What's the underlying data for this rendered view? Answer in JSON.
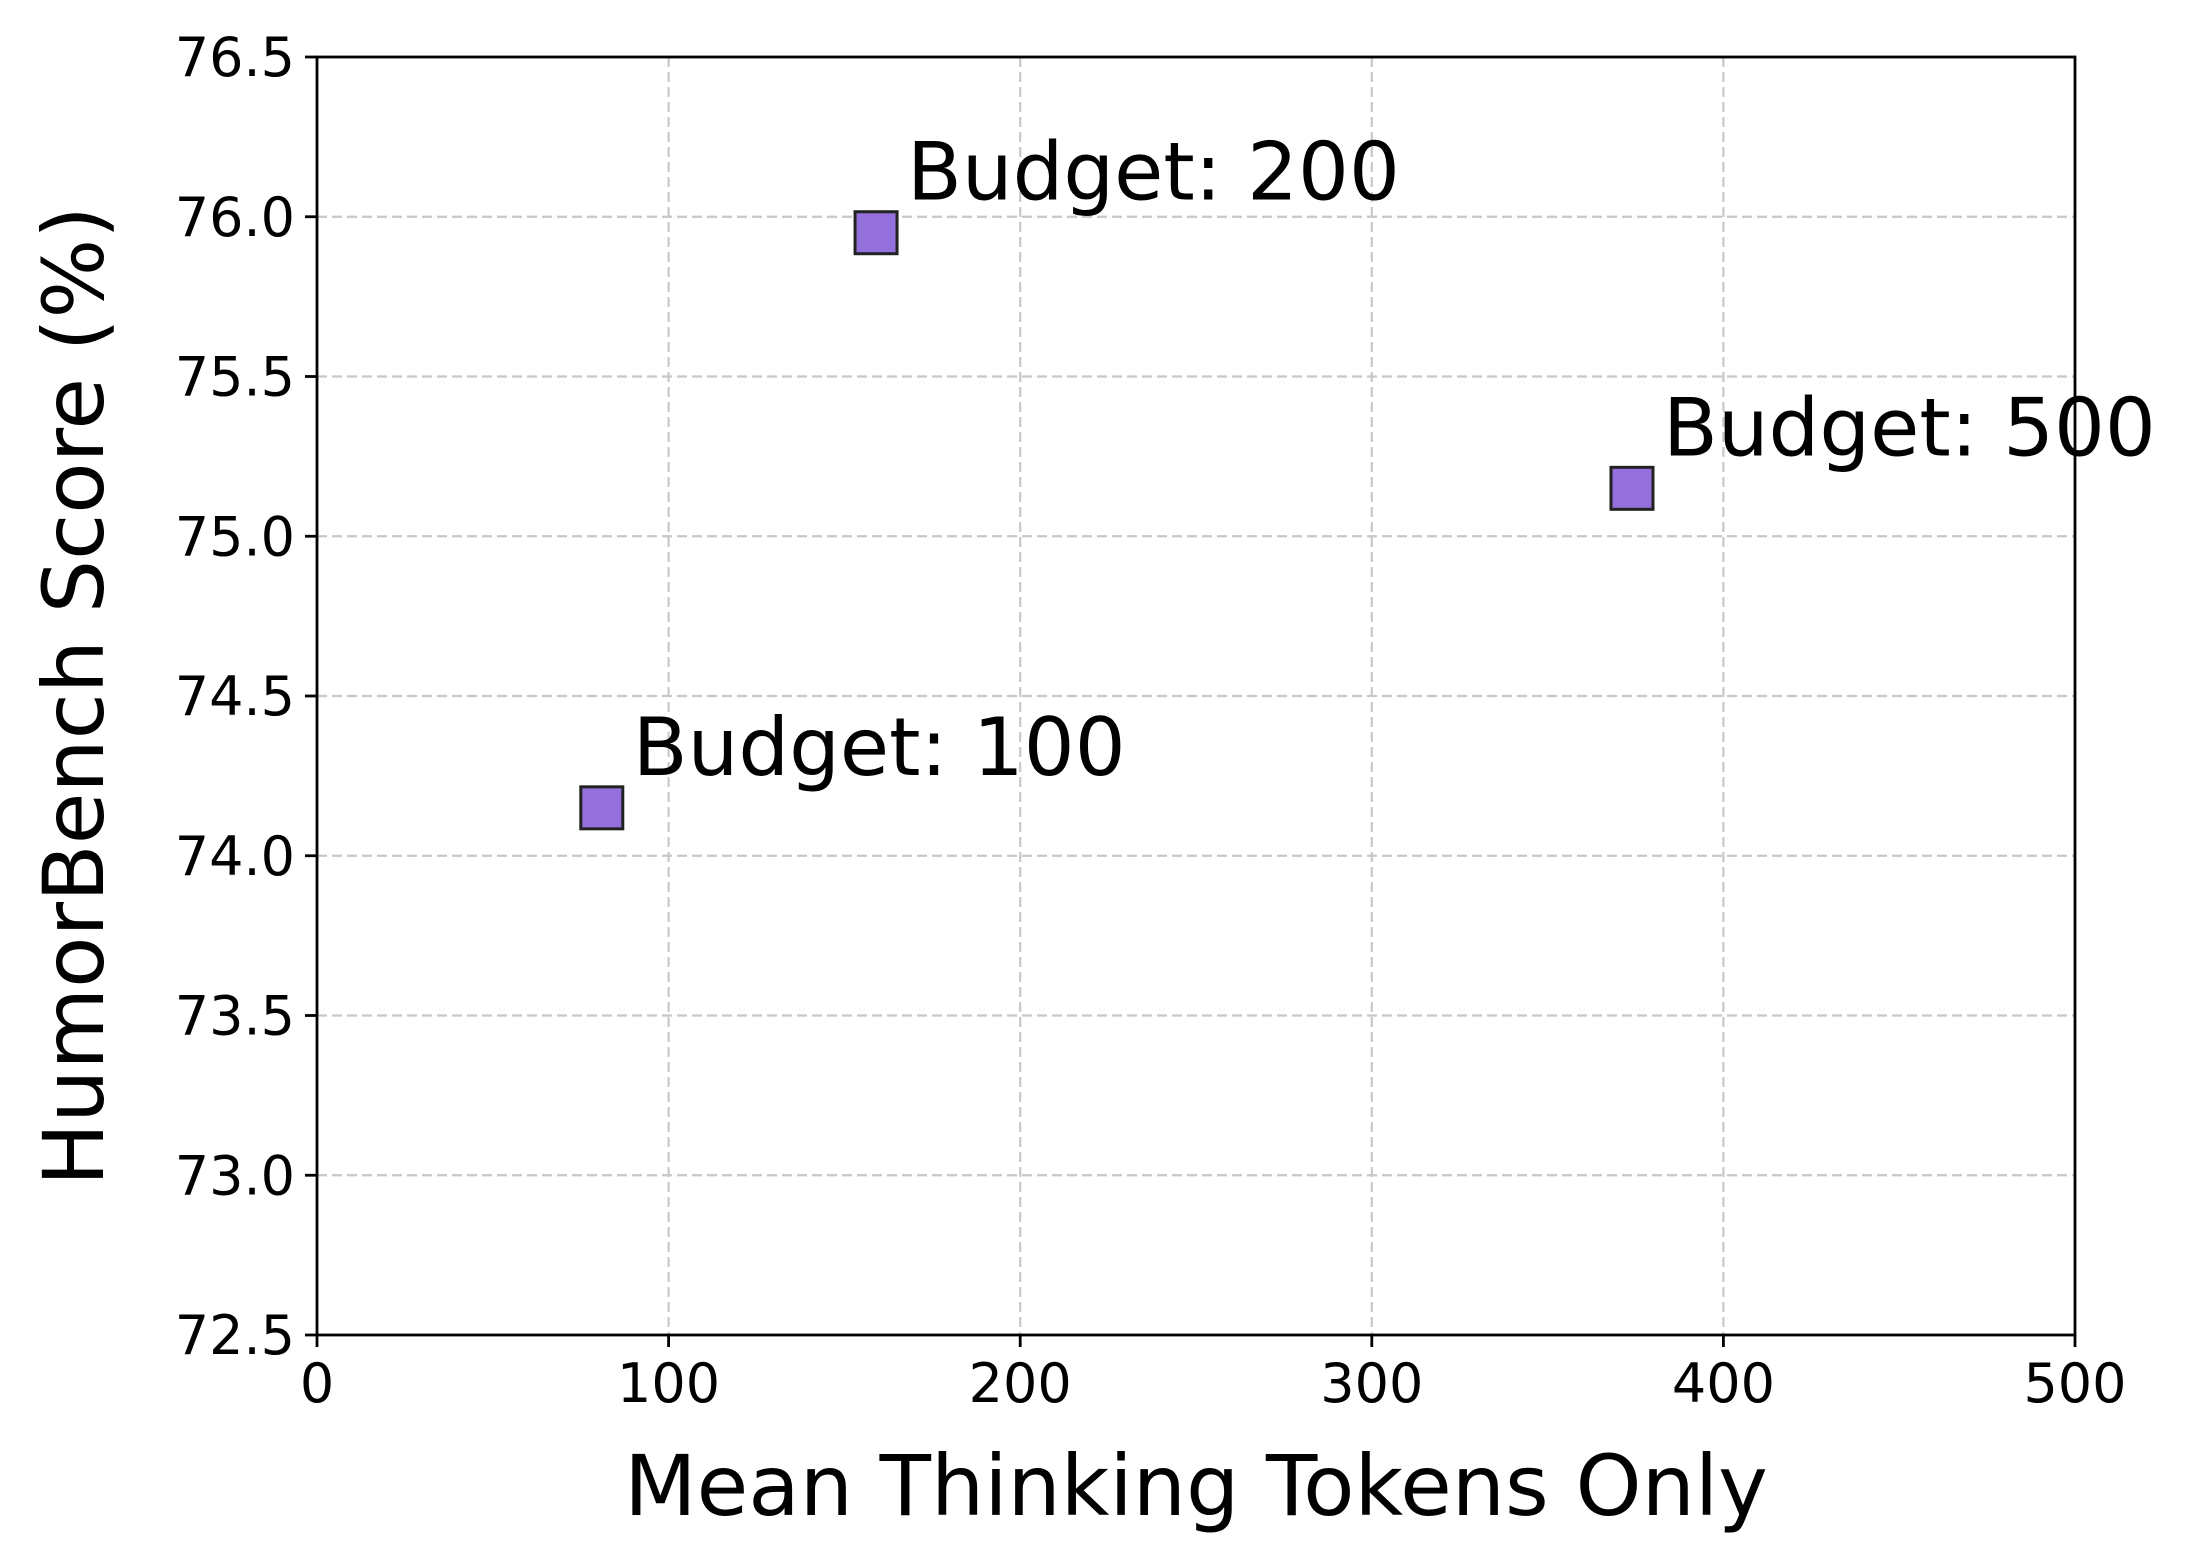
{
  "chart_data": {
    "type": "scatter",
    "xlabel": "Mean Thinking Tokens Only",
    "ylabel": "HumorBench Score (%)",
    "xlim": [
      0,
      500
    ],
    "ylim": [
      72.5,
      76.5
    ],
    "xticks": [
      0,
      100,
      200,
      300,
      400,
      500
    ],
    "xtick_labels": [
      "0",
      "100",
      "200",
      "300",
      "400",
      "500"
    ],
    "yticks": [
      72.5,
      73.0,
      73.5,
      74.0,
      74.5,
      75.0,
      75.5,
      76.0,
      76.5
    ],
    "ytick_labels": [
      "72.5",
      "73.0",
      "73.5",
      "74.0",
      "74.5",
      "75.0",
      "75.5",
      "76.0",
      "76.5"
    ],
    "grid": true,
    "marker": "square",
    "marker_color": "#9370db",
    "marker_edge_color": "#222222",
    "points": [
      {
        "x": 81,
        "y": 74.15,
        "label": "Budget: 100"
      },
      {
        "x": 159,
        "y": 75.95,
        "label": "Budget: 200"
      },
      {
        "x": 374,
        "y": 75.15,
        "label": "Budget: 500"
      }
    ]
  }
}
